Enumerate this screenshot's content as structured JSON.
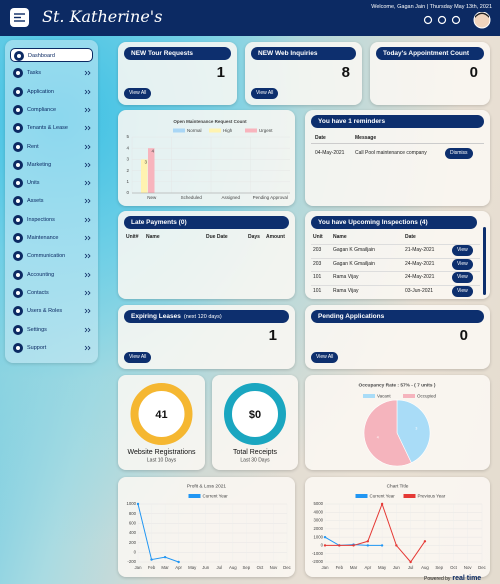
{
  "header": {
    "brand": "St. Katherine's",
    "welcome": "Welcome, Gagan Jain | Thursday May 13th, 2021"
  },
  "sidebar": [
    "Dashboard",
    "Tasks",
    "Application",
    "Compliance",
    "Tenants & Lease",
    "Rent",
    "Marketing",
    "Units",
    "Assets",
    "Inspections",
    "Maintenance",
    "Communication",
    "Accounting",
    "Contacts",
    "Users & Roles",
    "Settings",
    "Support"
  ],
  "stats": [
    {
      "title": "NEW Tour Requests",
      "value": 1,
      "button": "View All"
    },
    {
      "title": "NEW Web Inquiries",
      "value": 8,
      "button": "View All"
    },
    {
      "title": "Today's Appointment Count",
      "value": 0
    }
  ],
  "reminders": {
    "title": "You have 1 reminders",
    "columns": [
      "Date",
      "Message"
    ],
    "rows": [
      [
        "04-May-2021",
        "Call Pool maintenance company"
      ]
    ],
    "button": "Dismiss"
  },
  "late_payments": {
    "title": "Late Payments (0)",
    "columns": [
      "Unit#",
      "Name",
      "Due Date",
      "Days",
      "Amount"
    ]
  },
  "inspections": {
    "title": "You have Upcoming Inspections (4)",
    "columns": [
      "Unit",
      "Name",
      "Date"
    ],
    "rows": [
      [
        "203",
        "Gagan K Gmailjain",
        "21-May-2021"
      ],
      [
        "203",
        "Gagan K Gmailjain",
        "24-May-2021"
      ],
      [
        "101",
        "Rama Vijay",
        "24-May-2021"
      ],
      [
        "101",
        "Rama Vijay",
        "03-Jun-2021"
      ]
    ],
    "button": "View"
  },
  "expiring_leases": {
    "title": "Expiring Leases",
    "subtitle": "(next 120 days)",
    "value": 1,
    "button": "View All"
  },
  "pending_applications": {
    "title": "Pending Applications",
    "value": 0,
    "button": "View All"
  },
  "registrations": {
    "value": 41,
    "label": "Website Registrations",
    "sublabel": "Last 10 Days"
  },
  "receipts": {
    "value": "$0",
    "label": "Total Receipts",
    "sublabel": "Last 30 Days"
  },
  "chart_data": [
    {
      "type": "bar",
      "title": "Open Maintenance Request Count",
      "categories": [
        "New",
        "Scheduled",
        "Assigned",
        "Pending Approval"
      ],
      "series": [
        {
          "name": "Normal",
          "color": "#a9d6f5",
          "values": [
            0,
            0,
            0,
            0
          ]
        },
        {
          "name": "High",
          "color": "#fff3b0",
          "values": [
            3,
            0,
            0,
            0
          ]
        },
        {
          "name": "Urgent",
          "color": "#f8b4bd",
          "values": [
            4,
            0,
            0,
            0
          ]
        }
      ],
      "ylim": [
        0,
        5
      ],
      "yticks": [
        0,
        1,
        2,
        3,
        4,
        5
      ]
    },
    {
      "type": "pie",
      "title": "Occupancy Rate : 57% - ( 7 units )",
      "categories": [
        "Vacant",
        "Occupied"
      ],
      "values": [
        3,
        4
      ],
      "colors": [
        "#a9dcf7",
        "#f5b4bd"
      ]
    },
    {
      "type": "line",
      "title": "Profit & Loss 2021",
      "categories": [
        "Jan",
        "Feb",
        "Mar",
        "Apr",
        "May",
        "Jun",
        "Jul",
        "Aug",
        "Sep",
        "Oct",
        "Nov",
        "Dec"
      ],
      "series": [
        {
          "name": "Current Year",
          "color": "#2196f3",
          "values": [
            1000,
            -150,
            -100,
            -200,
            null,
            null,
            null,
            null,
            null,
            null,
            null,
            null
          ]
        }
      ],
      "ylim": [
        -200,
        1000
      ],
      "yticks": [
        -200,
        0,
        200,
        400,
        600,
        800,
        1000
      ]
    },
    {
      "type": "line",
      "title": "Chart Title",
      "categories": [
        "Jan",
        "Feb",
        "Mar",
        "Apr",
        "May",
        "Jun",
        "Jul",
        "Aug",
        "Sep",
        "Oct",
        "Nov",
        "Dec"
      ],
      "series": [
        {
          "name": "Current Year",
          "color": "#2196f3",
          "values": [
            1000,
            0,
            100,
            0,
            0,
            null,
            null,
            null,
            null,
            null,
            null,
            null
          ]
        },
        {
          "name": "Previous Year",
          "color": "#e53935",
          "values": [
            0,
            0,
            0,
            500,
            5000,
            0,
            -2000,
            500,
            null,
            null,
            null,
            null
          ]
        }
      ],
      "ylim": [
        -2000,
        5000
      ],
      "yticks": [
        -2000,
        -1000,
        0,
        1000,
        2000,
        3000,
        4000,
        5000
      ]
    }
  ],
  "footer": {
    "prefix": "Powered by",
    "brand": "real time"
  }
}
